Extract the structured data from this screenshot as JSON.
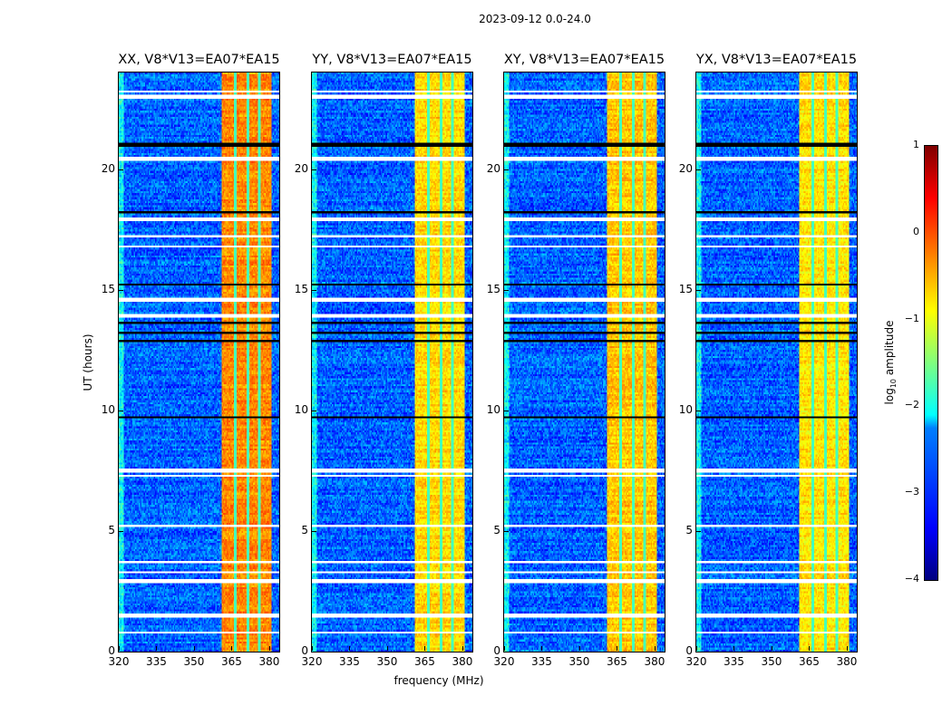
{
  "chart_data": {
    "type": "heatmap",
    "suptitle": "2023-09-12 0.0-24.0",
    "xlabel": "frequency (MHz)",
    "ylabel": "UT (hours)",
    "xlim": [
      320,
      384
    ],
    "ylim": [
      0,
      24
    ],
    "xticks": [
      "320",
      "335",
      "350",
      "365",
      "380"
    ],
    "yticks": [
      "0",
      "5",
      "10",
      "15",
      "20"
    ],
    "panels": [
      {
        "title": "XX, V8*V13=EA07*EA15",
        "band_level": -0.3
      },
      {
        "title": "YY, V8*V13=EA07*EA15",
        "band_level": -0.7
      },
      {
        "title": "XY, V8*V13=EA07*EA15",
        "band_level": -0.6
      },
      {
        "title": "YX, V8*V13=EA07*EA15",
        "band_level": -0.75
      }
    ],
    "bright_band_MHz": [
      361,
      381
    ],
    "background_level": -2.9,
    "flagged_hours_white": [
      0.8,
      1.5,
      2.9,
      3.3,
      3.7,
      5.2,
      7.3,
      7.5,
      14.6,
      13.9,
      16.8,
      17.2,
      17.9,
      20.4,
      23.0,
      23.2
    ],
    "flagged_hours_black": [
      9.7,
      12.9,
      13.2,
      13.6,
      15.2,
      18.2,
      21.0
    ],
    "colorbar": {
      "label": "log10 amplitude",
      "label_main": "log",
      "label_sub": "10",
      "label_rest": " amplitude",
      "range": [
        -4,
        1
      ],
      "ticks": [
        "1",
        "0",
        "−1",
        "−2",
        "−3",
        "−4"
      ],
      "colormap": "jet"
    }
  }
}
